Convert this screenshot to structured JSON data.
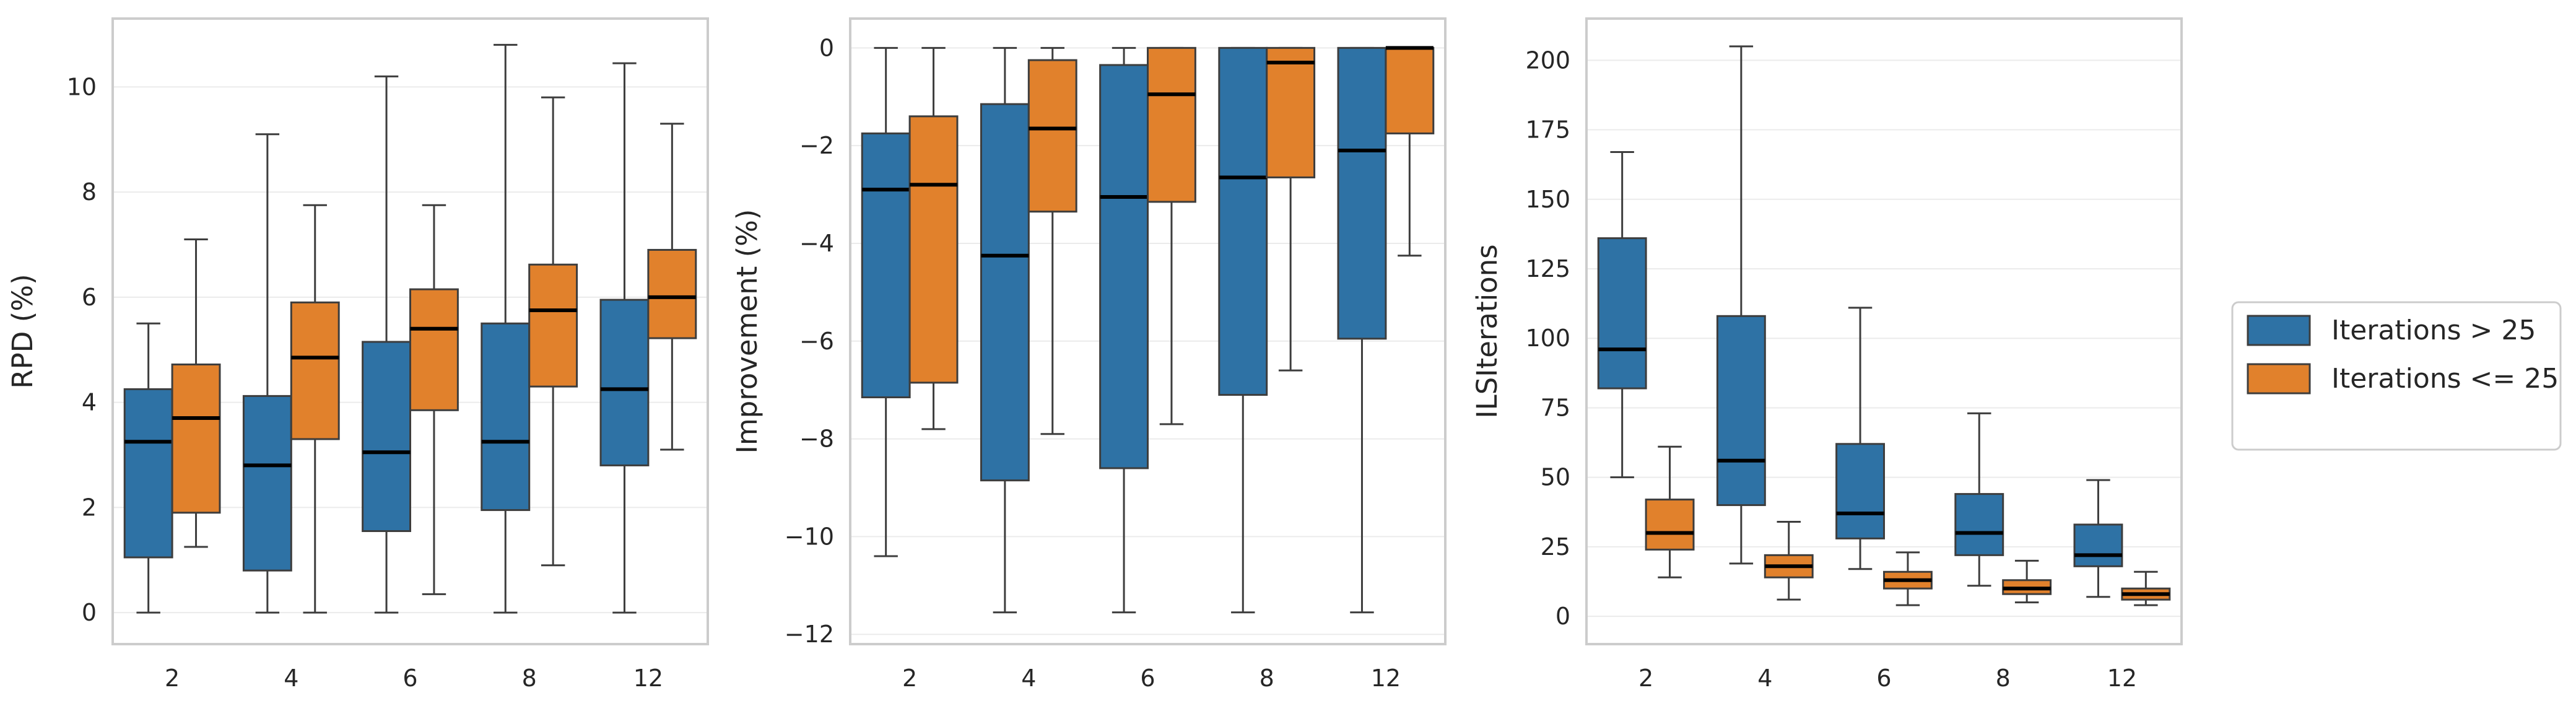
{
  "chart_data": [
    {
      "type": "box",
      "categories": [
        "2",
        "4",
        "6",
        "8",
        "12"
      ],
      "ylabel": "RPD (%)",
      "xlabel": "",
      "ylim": [
        -0.6,
        11.3
      ],
      "yticks": [
        0,
        2,
        4,
        6,
        8,
        10
      ],
      "series": [
        {
          "name": "Iterations > 25",
          "boxes": [
            {
              "min": 0.0,
              "q1": 1.05,
              "median": 3.25,
              "q3": 4.25,
              "max": 5.5
            },
            {
              "min": 0.0,
              "q1": 0.8,
              "median": 2.8,
              "q3": 4.12,
              "max": 9.1
            },
            {
              "min": 0.0,
              "q1": 1.55,
              "median": 3.05,
              "q3": 5.15,
              "max": 10.2
            },
            {
              "min": 0.0,
              "q1": 1.95,
              "median": 3.25,
              "q3": 5.5,
              "max": 10.8
            },
            {
              "min": 0.0,
              "q1": 2.8,
              "median": 4.25,
              "q3": 5.95,
              "max": 10.45
            }
          ]
        },
        {
          "name": "Iterations <= 25",
          "boxes": [
            {
              "min": 1.25,
              "q1": 1.9,
              "median": 3.7,
              "q3": 4.72,
              "max": 7.1
            },
            {
              "min": 0.0,
              "q1": 3.3,
              "median": 4.85,
              "q3": 5.9,
              "max": 7.75
            },
            {
              "min": 0.35,
              "q1": 3.85,
              "median": 5.4,
              "q3": 6.15,
              "max": 7.75
            },
            {
              "min": 0.9,
              "q1": 4.3,
              "median": 5.75,
              "q3": 6.62,
              "max": 9.8
            },
            {
              "min": 3.1,
              "q1": 5.22,
              "median": 6.0,
              "q3": 6.9,
              "max": 9.3
            }
          ]
        }
      ]
    },
    {
      "type": "box",
      "categories": [
        "2",
        "4",
        "6",
        "8",
        "12"
      ],
      "ylabel": "Improvement (%)",
      "xlabel": "",
      "ylim": [
        -12.2,
        0.6
      ],
      "yticks": [
        -12,
        -10,
        -8,
        -6,
        -4,
        -2,
        0
      ],
      "series": [
        {
          "name": "Iterations > 25",
          "boxes": [
            {
              "min": -10.4,
              "q1": -7.15,
              "median": -2.9,
              "q3": -1.75,
              "max": 0.0
            },
            {
              "min": -11.55,
              "q1": -8.85,
              "median": -4.25,
              "q3": -1.15,
              "max": 0.0
            },
            {
              "min": -11.55,
              "q1": -8.6,
              "median": -3.05,
              "q3": -0.35,
              "max": 0.0
            },
            {
              "min": -11.55,
              "q1": -7.1,
              "median": -2.65,
              "q3": 0.0,
              "max": 0.0
            },
            {
              "min": -11.55,
              "q1": -5.95,
              "median": -2.1,
              "q3": 0.0,
              "max": 0.0
            }
          ]
        },
        {
          "name": "Iterations <= 25",
          "boxes": [
            {
              "min": -7.8,
              "q1": -6.85,
              "median": -2.8,
              "q3": -1.4,
              "max": 0.0
            },
            {
              "min": -7.9,
              "q1": -3.35,
              "median": -1.65,
              "q3": -0.25,
              "max": 0.0
            },
            {
              "min": -7.7,
              "q1": -3.15,
              "median": -0.95,
              "q3": 0.0,
              "max": 0.0
            },
            {
              "min": -6.6,
              "q1": -2.65,
              "median": -0.3,
              "q3": 0.0,
              "max": 0.0
            },
            {
              "min": -4.25,
              "q1": -1.75,
              "median": 0.0,
              "q3": 0.0,
              "max": 0.0
            }
          ]
        }
      ]
    },
    {
      "type": "box",
      "categories": [
        "2",
        "4",
        "6",
        "8",
        "12"
      ],
      "ylabel": "ILSIterations",
      "xlabel": "",
      "ylim": [
        -10,
        215
      ],
      "yticks": [
        0,
        25,
        50,
        75,
        100,
        125,
        150,
        175,
        200
      ],
      "series": [
        {
          "name": "Iterations > 25",
          "boxes": [
            {
              "min": 50,
              "q1": 82,
              "median": 96,
              "q3": 136,
              "max": 167
            },
            {
              "min": 19,
              "q1": 40,
              "median": 56,
              "q3": 108,
              "max": 205
            },
            {
              "min": 17,
              "q1": 28,
              "median": 37,
              "q3": 62,
              "max": 111
            },
            {
              "min": 11,
              "q1": 22,
              "median": 30,
              "q3": 44,
              "max": 73
            },
            {
              "min": 7,
              "q1": 18,
              "median": 22,
              "q3": 33,
              "max": 49
            }
          ]
        },
        {
          "name": "Iterations <= 25",
          "boxes": [
            {
              "min": 14,
              "q1": 24,
              "median": 30,
              "q3": 42,
              "max": 61
            },
            {
              "min": 6,
              "q1": 14,
              "median": 18,
              "q3": 22,
              "max": 34
            },
            {
              "min": 4,
              "q1": 10,
              "median": 13,
              "q3": 16,
              "max": 23
            },
            {
              "min": 5,
              "q1": 8,
              "median": 10,
              "q3": 13,
              "max": 20
            },
            {
              "min": 4,
              "q1": 6,
              "median": 8,
              "q3": 10,
              "max": 16
            }
          ]
        }
      ]
    }
  ],
  "colors": {
    "Iterations > 25": "#2e72a5",
    "Iterations <= 25": "#e1812c"
  },
  "legend": {
    "position": "right",
    "items": [
      "Iterations > 25",
      "Iterations <= 25"
    ]
  }
}
